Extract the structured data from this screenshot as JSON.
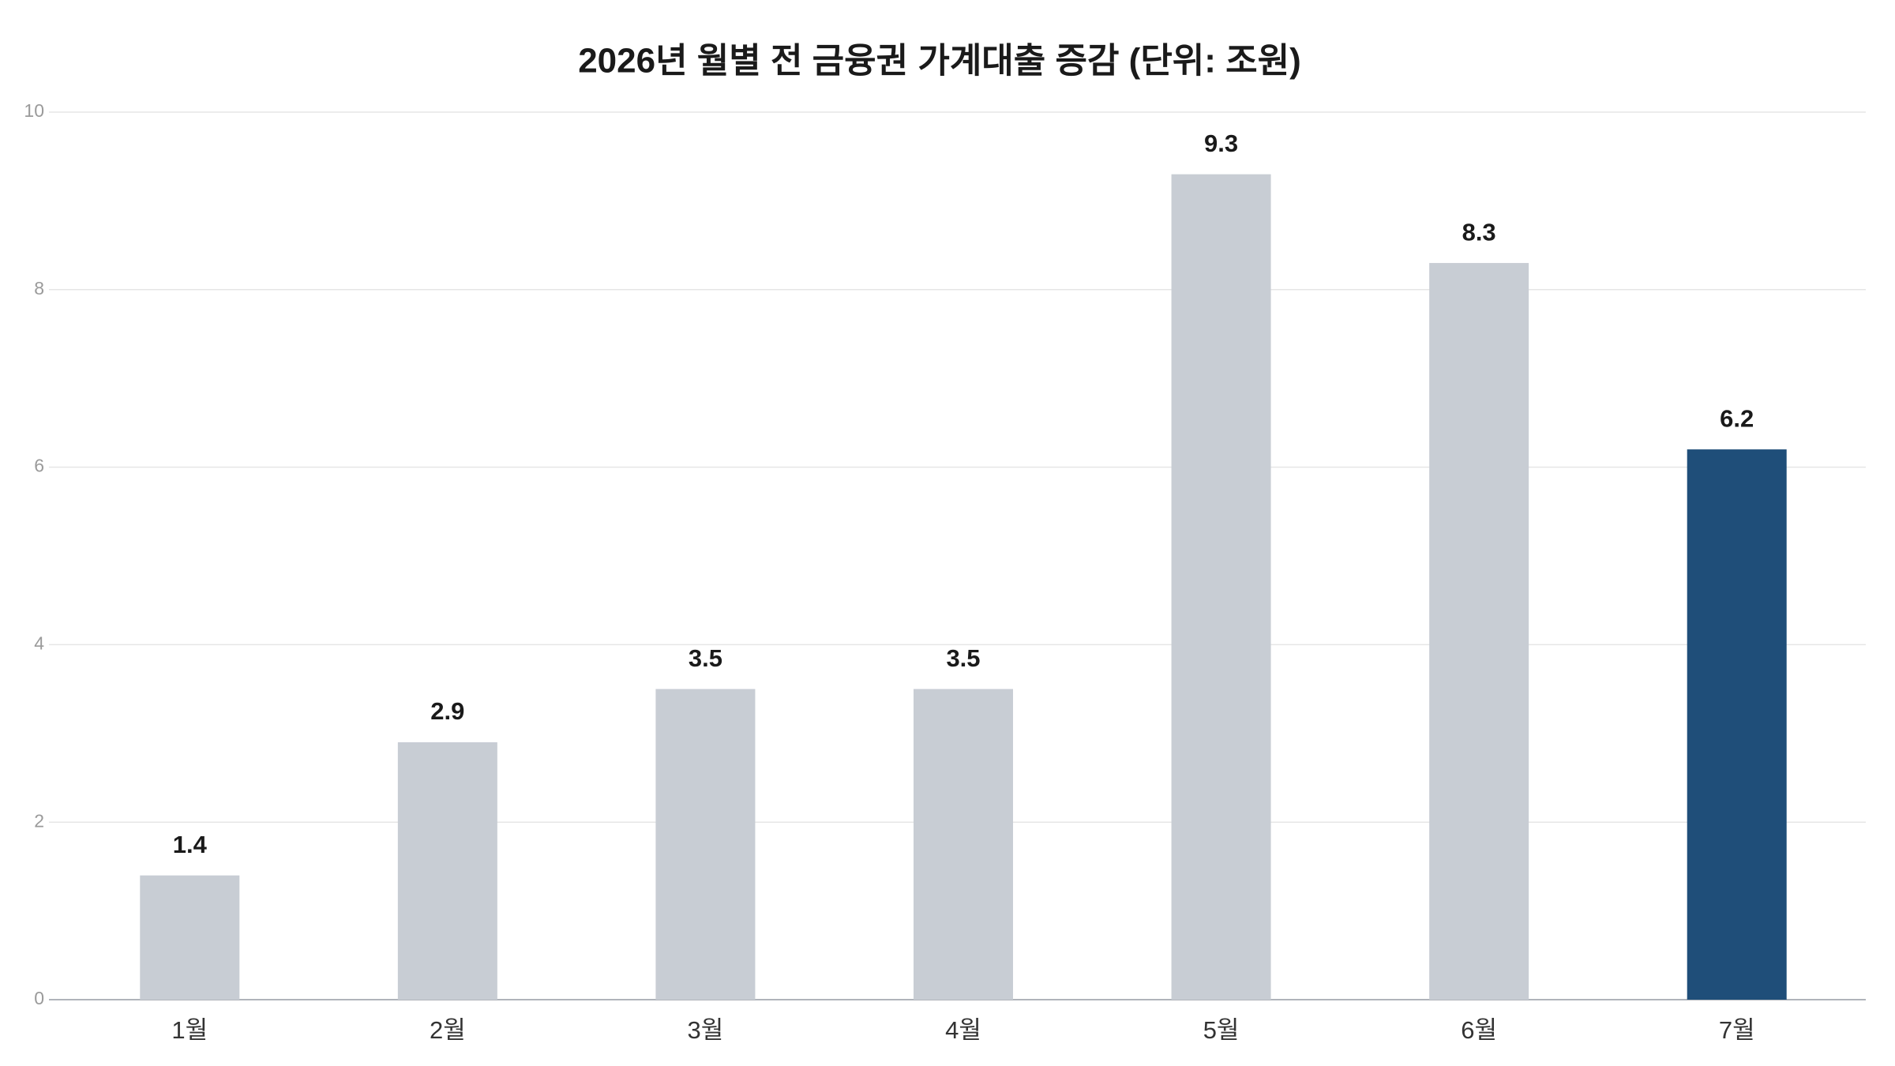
{
  "chart_data": {
    "type": "bar",
    "title": "2026년 월별 전 금융권 가계대출 증감 (단위: 조원)",
    "categories": [
      "1월",
      "2월",
      "3월",
      "4월",
      "5월",
      "6월",
      "7월"
    ],
    "values": [
      1.4,
      2.9,
      3.5,
      3.5,
      9.3,
      8.3,
      6.2
    ],
    "colors": [
      "#c8cdd4",
      "#c8cdd4",
      "#c8cdd4",
      "#c8cdd4",
      "#c8cdd4",
      "#c8cdd4",
      "#1f4e79"
    ],
    "ylim": [
      0,
      10
    ],
    "yticks": [
      0,
      2,
      4,
      6,
      8,
      10
    ],
    "grid": true
  }
}
